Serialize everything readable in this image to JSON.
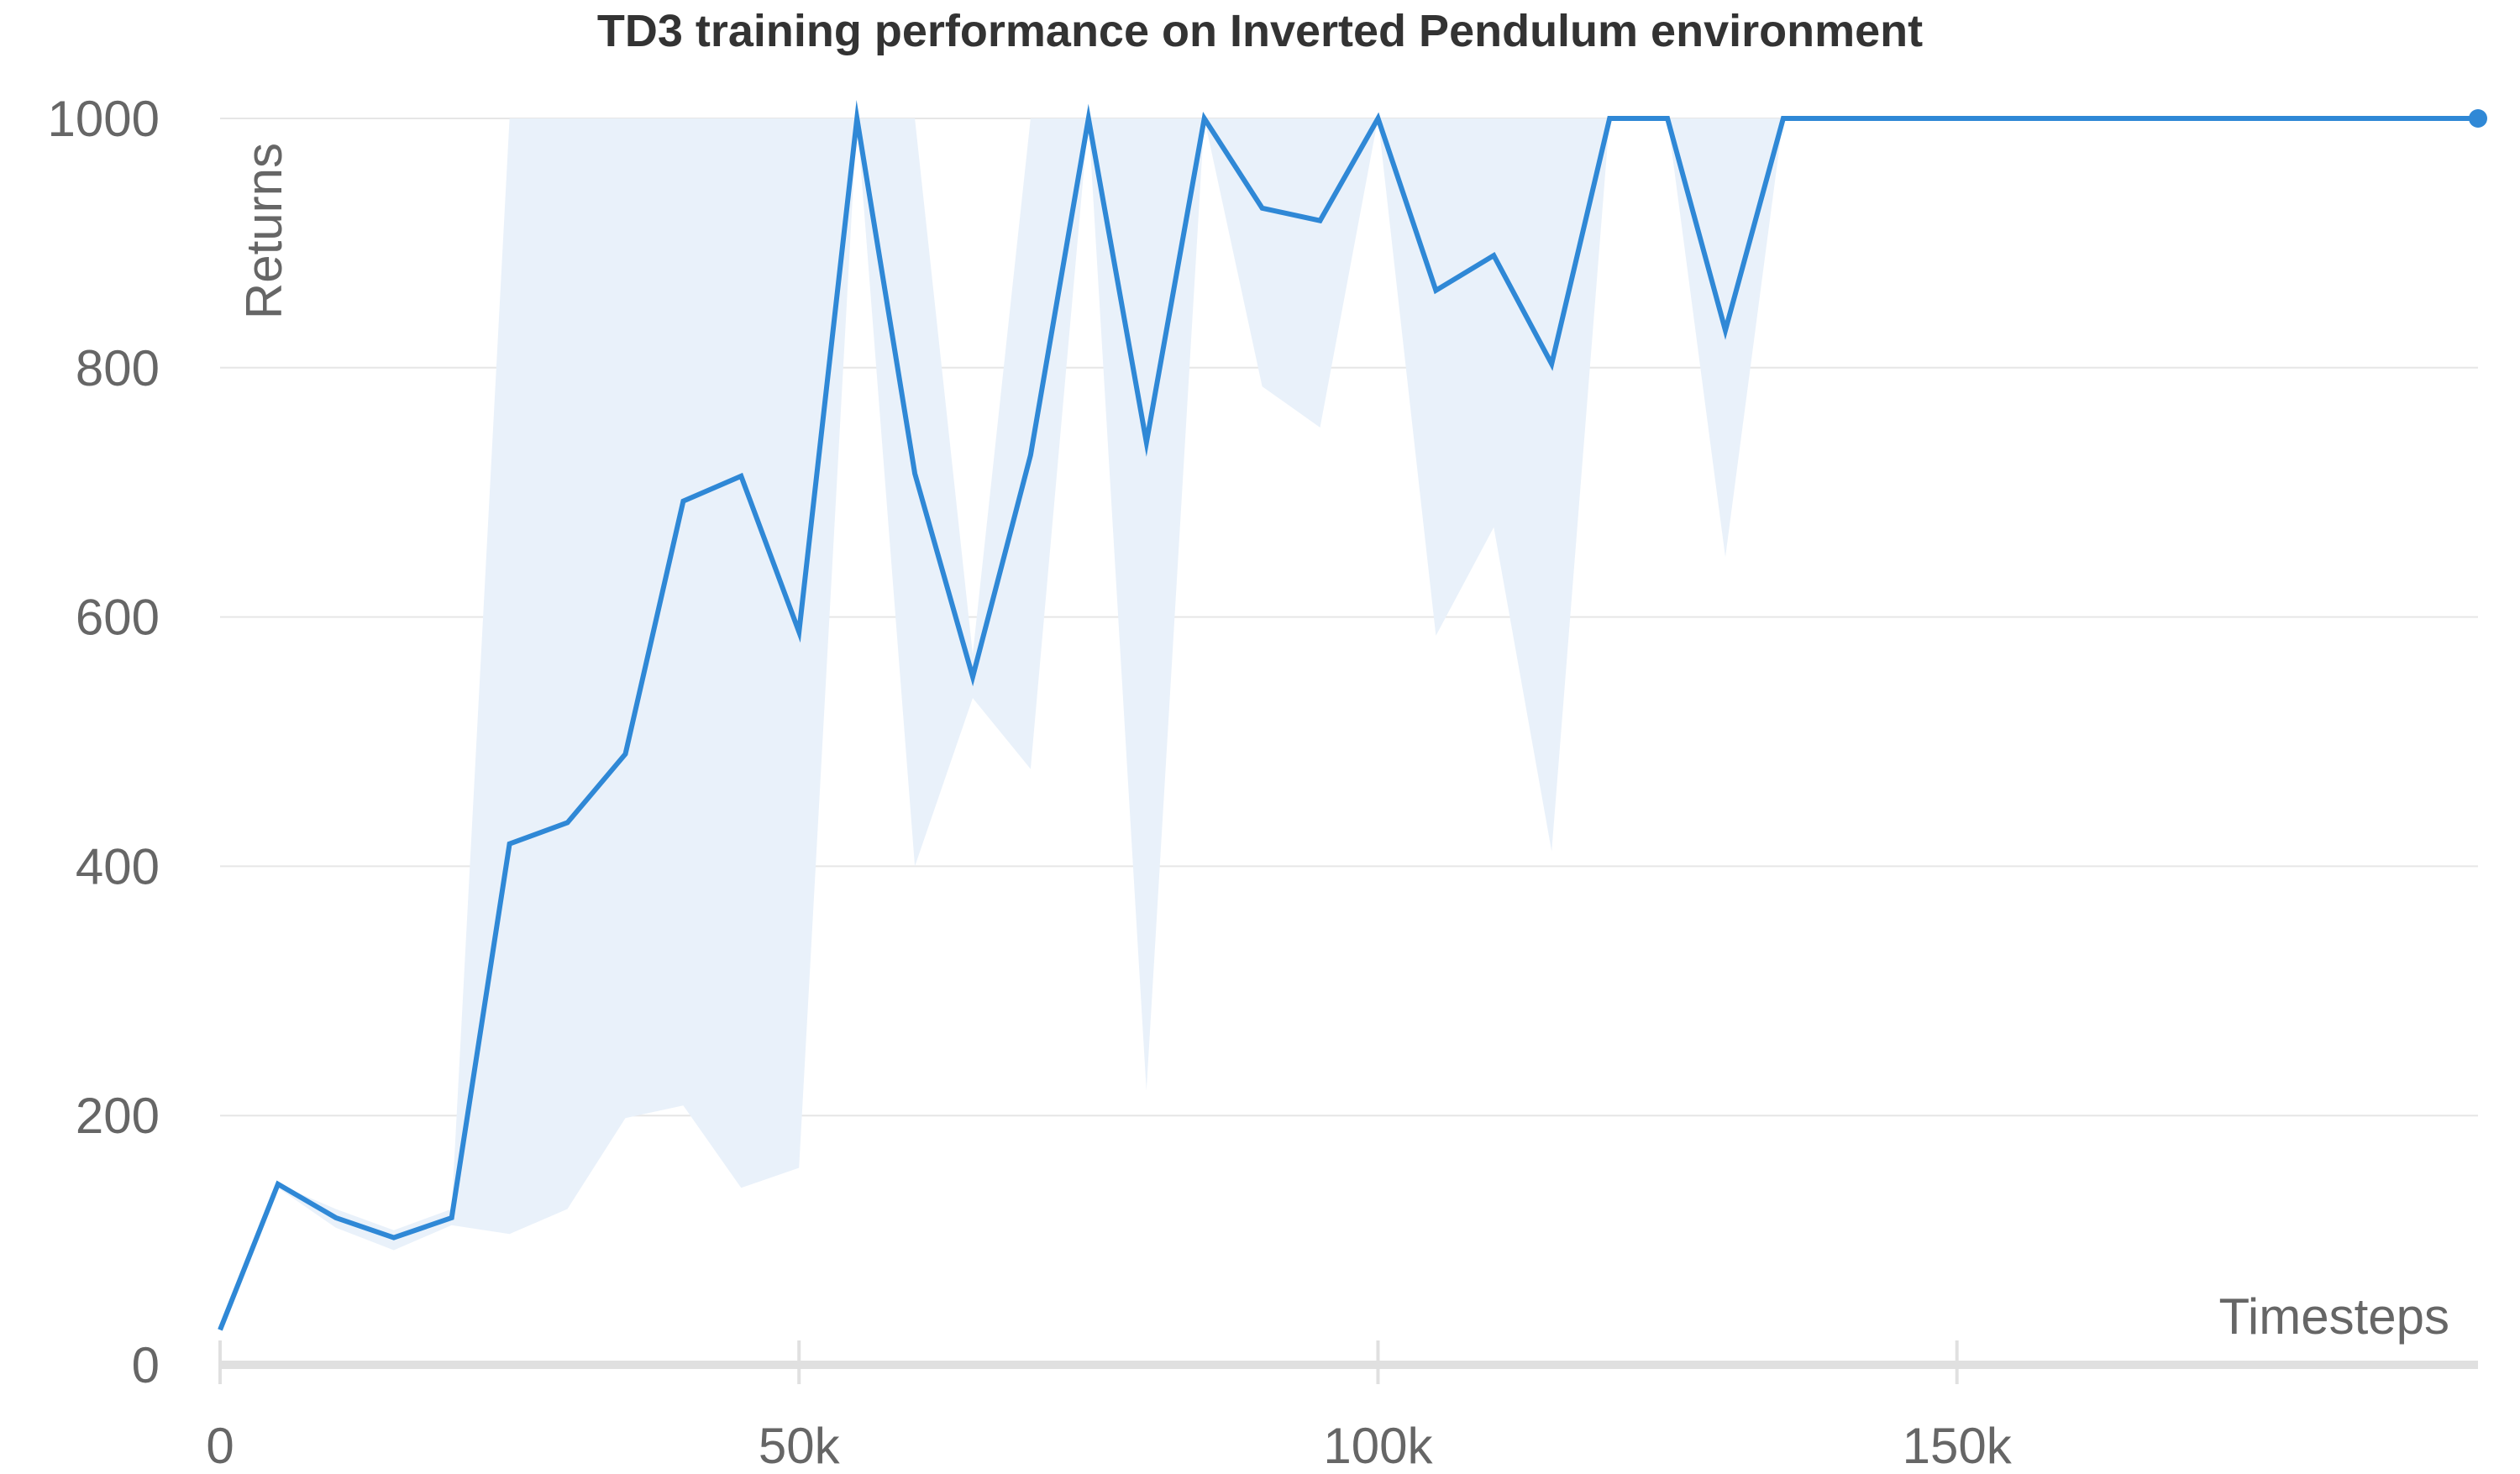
{
  "chart_data": {
    "type": "line",
    "title": "TD3 training performance on Inverted Pendulum environment",
    "xlabel": "Timesteps",
    "ylabel": "Returns",
    "xlim": [
      0,
      195000
    ],
    "ylim": [
      0,
      1000
    ],
    "x_ticks": [
      0,
      50000,
      100000,
      150000
    ],
    "x_tick_labels": [
      "0",
      "50k",
      "100k",
      "150k"
    ],
    "y_ticks": [
      0,
      200,
      400,
      600,
      800,
      1000
    ],
    "y_tick_labels": [
      "0",
      "200",
      "400",
      "600",
      "800",
      "1000"
    ],
    "grid": true,
    "legend": "none",
    "series": [
      {
        "color": "#2f88d6",
        "x": [
          0,
          5000,
          10000,
          15000,
          20000,
          25000,
          30000,
          35000,
          40000,
          45000,
          50000,
          55000,
          60000,
          65000,
          70000,
          75000,
          80000,
          85000,
          90000,
          95000,
          100000,
          105000,
          110000,
          115000,
          120000,
          125000,
          130000,
          135000,
          195000
        ],
        "y": [
          28,
          145,
          118,
          102,
          118,
          418,
          435,
          490,
          693,
          713,
          588,
          1000,
          715,
          552,
          730,
          1000,
          740,
          1000,
          928,
          918,
          1000,
          862,
          890,
          803,
          1000,
          1000,
          830,
          1000,
          1000
        ]
      }
    ],
    "band": {
      "color": "#e9f1fa",
      "x": [
        0,
        5000,
        10000,
        15000,
        20000,
        25000,
        30000,
        35000,
        40000,
        45000,
        50000,
        55000,
        60000,
        65000,
        70000,
        75000,
        80000,
        85000,
        90000,
        95000,
        100000,
        105000,
        110000,
        115000,
        120000,
        125000,
        130000,
        135000,
        195000
      ],
      "upper": [
        28,
        145,
        125,
        108,
        125,
        1000,
        1000,
        1000,
        1000,
        1000,
        1000,
        1000,
        1000,
        570,
        1000,
        1000,
        1000,
        1000,
        1000,
        1000,
        1000,
        1000,
        1000,
        1000,
        1000,
        1000,
        1000,
        1000,
        1000
      ],
      "lower": [
        28,
        142,
        110,
        92,
        112,
        105,
        125,
        198,
        208,
        142,
        158,
        1000,
        400,
        535,
        478,
        1000,
        220,
        1000,
        785,
        752,
        1000,
        585,
        672,
        412,
        1000,
        1000,
        648,
        1000,
        1000
      ]
    }
  }
}
